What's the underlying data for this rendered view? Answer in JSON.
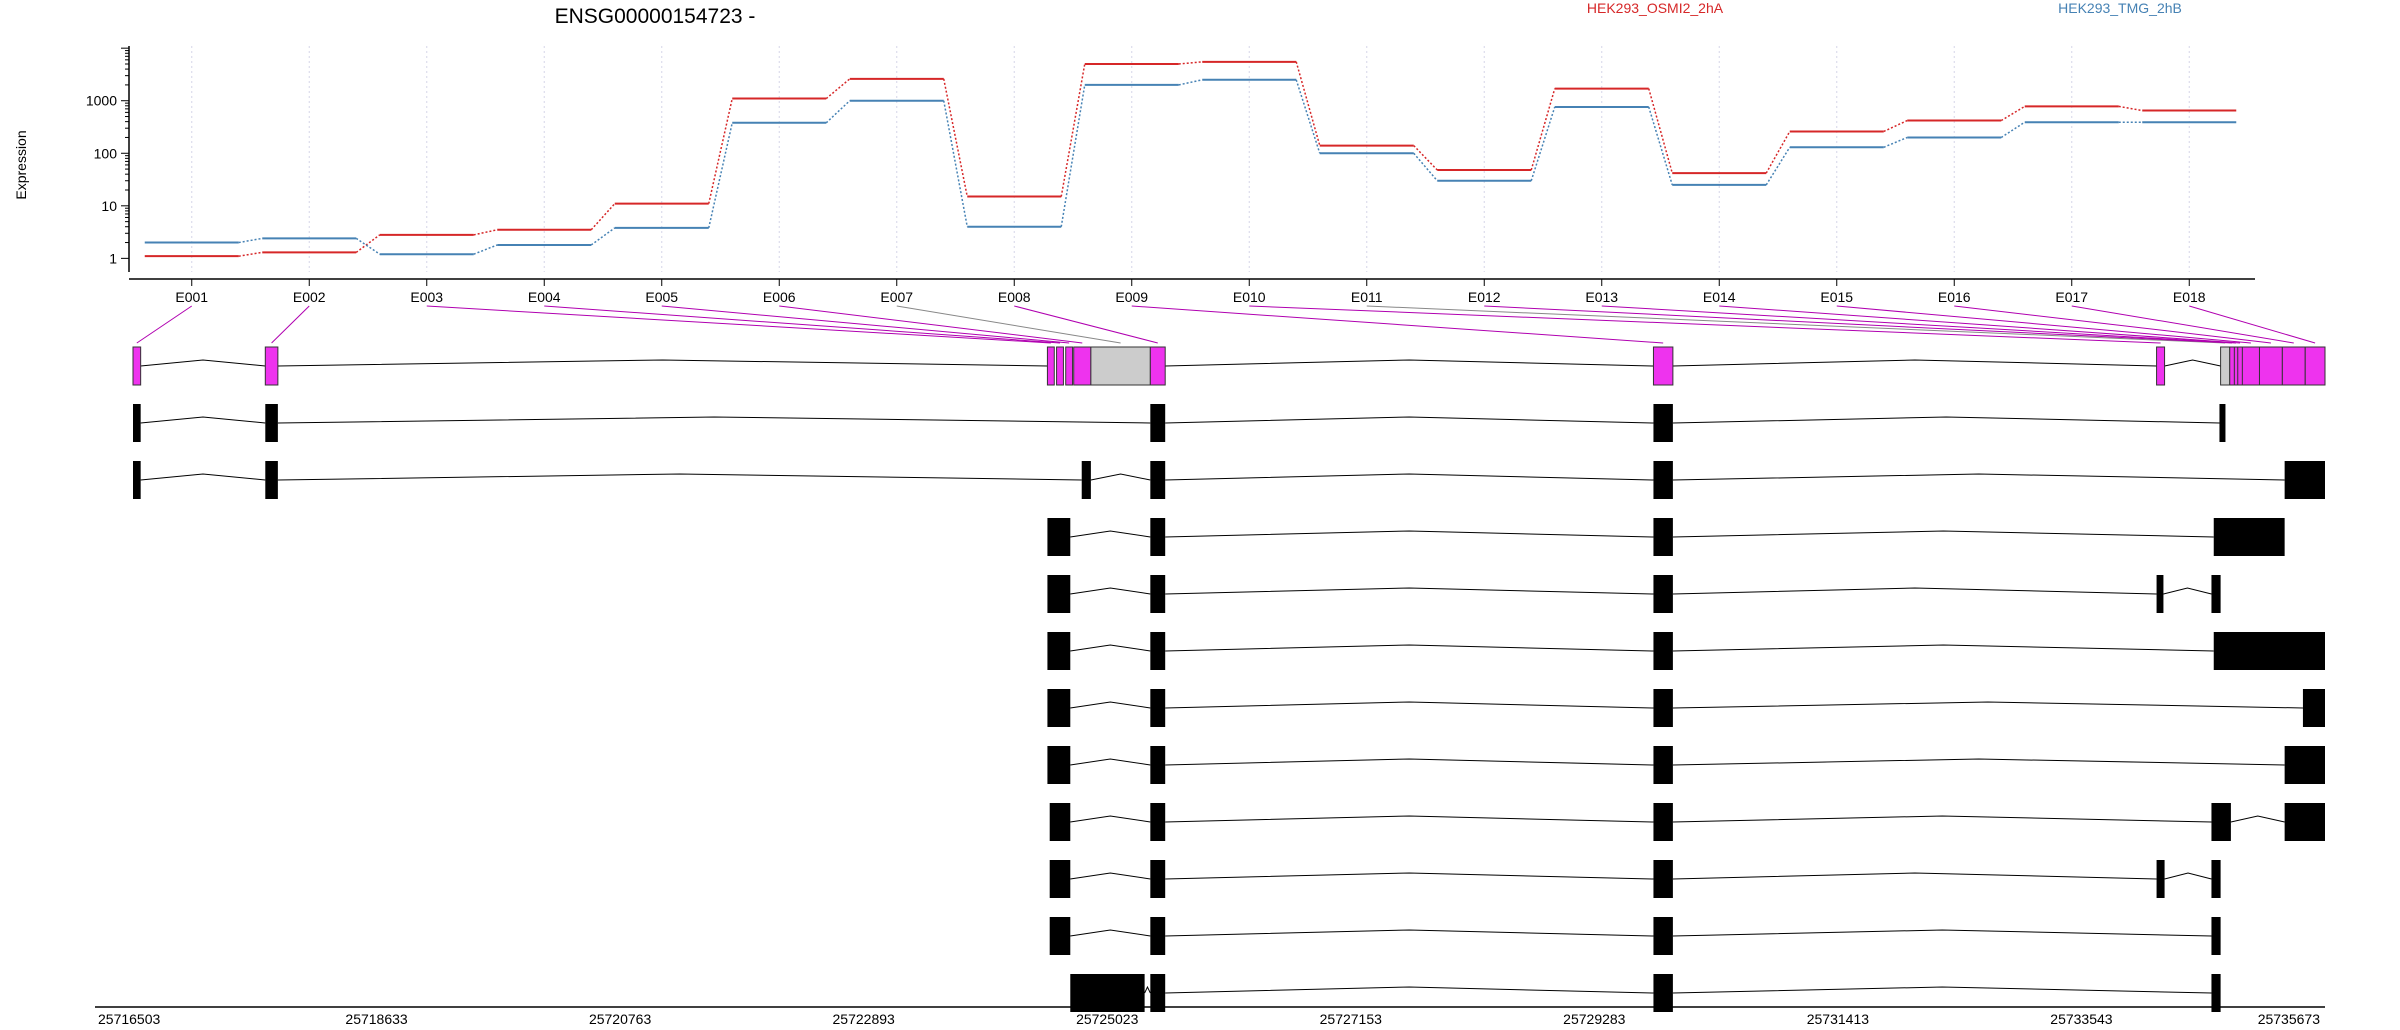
{
  "chart_data": {
    "type": "line",
    "title": "ENSG00000154723 -",
    "ylabel": "Expression",
    "y_scale": "log",
    "yticks": [
      "1",
      "10",
      "100",
      "1000"
    ],
    "ylim": [
      0.55,
      11000
    ],
    "grid": "vertical dotted lines at exon centers",
    "legend_placement": "top-right",
    "categories": [
      "E001",
      "E002",
      "E003",
      "E004",
      "E005",
      "E006",
      "E007",
      "E008",
      "E009",
      "E010",
      "E011",
      "E012",
      "E013",
      "E014",
      "E015",
      "E016",
      "E017",
      "E018"
    ],
    "series": [
      {
        "name": "HEK293_OSMI2_2hA",
        "color": "#d62728",
        "values": [
          1.1,
          1.3,
          2.8,
          3.5,
          11,
          1100,
          2600,
          15,
          5000,
          5500,
          140,
          48,
          1700,
          42,
          260,
          420,
          780,
          650
        ]
      },
      {
        "name": "HEK293_TMG_2hB",
        "color": "#4682b4",
        "values": [
          2.0,
          2.4,
          1.2,
          1.8,
          3.8,
          380,
          1000,
          4.0,
          2000,
          2500,
          100,
          30,
          760,
          25,
          130,
          200,
          390,
          390
        ]
      }
    ],
    "genomic_axis": {
      "min": 25716503,
      "max": 25735673,
      "tick_labels": [
        "25716503",
        "25718633",
        "25720763",
        "25722893",
        "25725023",
        "25727153",
        "25729283",
        "25731413",
        "25733543",
        "25735673"
      ]
    },
    "exons": [
      {
        "id": "E001",
        "start": 25716503,
        "end": 25716570,
        "tested": true
      },
      {
        "id": "E002",
        "start": 25717660,
        "end": 25717770,
        "tested": true
      },
      {
        "id": "E003",
        "start": 25724500,
        "end": 25724560,
        "tested": true
      },
      {
        "id": "E004",
        "start": 25724580,
        "end": 25724640,
        "tested": true
      },
      {
        "id": "E005",
        "start": 25724660,
        "end": 25724720,
        "tested": true
      },
      {
        "id": "E006",
        "start": 25724730,
        "end": 25724880,
        "tested": true
      },
      {
        "id": "E007",
        "start": 25724880,
        "end": 25725400,
        "tested": false
      },
      {
        "id": "E008",
        "start": 25725400,
        "end": 25725530,
        "tested": true
      },
      {
        "id": "E009",
        "start": 25729800,
        "end": 25729970,
        "tested": true
      },
      {
        "id": "E010",
        "start": 25734200,
        "end": 25734270,
        "tested": true
      },
      {
        "id": "E011",
        "start": 25734760,
        "end": 25734840,
        "tested": false
      },
      {
        "id": "E012",
        "start": 25734840,
        "end": 25734880,
        "tested": true
      },
      {
        "id": "E013",
        "start": 25734880,
        "end": 25734910,
        "tested": true
      },
      {
        "id": "E014",
        "start": 25734910,
        "end": 25734950,
        "tested": true
      },
      {
        "id": "E015",
        "start": 25734950,
        "end": 25735100,
        "tested": true
      },
      {
        "id": "E016",
        "start": 25735100,
        "end": 25735300,
        "tested": true
      },
      {
        "id": "E017",
        "start": 25735300,
        "end": 25735500,
        "tested": true
      },
      {
        "id": "E018",
        "start": 25735500,
        "end": 25735673,
        "tested": true
      }
    ],
    "transcripts": [
      [
        [
          25716503,
          25716570
        ],
        [
          25717660,
          25717770
        ],
        [
          25725400,
          25725530
        ],
        [
          25729800,
          25729970
        ],
        [
          25734750,
          25734790
        ]
      ],
      [
        [
          25716503,
          25716570
        ],
        [
          25717660,
          25717770
        ],
        [
          25724800,
          25724880
        ],
        [
          25725400,
          25725530
        ],
        [
          25729800,
          25729970
        ],
        [
          25735320,
          25735673
        ]
      ],
      [
        [
          25724500,
          25724700
        ],
        [
          25725400,
          25725530
        ],
        [
          25729800,
          25729970
        ],
        [
          25734700,
          25735320
        ]
      ],
      [
        [
          25724500,
          25724700
        ],
        [
          25725400,
          25725530
        ],
        [
          25729800,
          25729970
        ],
        [
          25734200,
          25734260
        ],
        [
          25734680,
          25734760
        ]
      ],
      [
        [
          25724500,
          25724700
        ],
        [
          25725400,
          25725530
        ],
        [
          25729800,
          25729970
        ],
        [
          25734700,
          25735673
        ]
      ],
      [
        [
          25724500,
          25724700
        ],
        [
          25725400,
          25725530
        ],
        [
          25729800,
          25729970
        ],
        [
          25735480,
          25735673
        ]
      ],
      [
        [
          25724500,
          25724700
        ],
        [
          25725400,
          25725530
        ],
        [
          25729800,
          25729970
        ],
        [
          25735320,
          25735673
        ]
      ],
      [
        [
          25724520,
          25724700
        ],
        [
          25725400,
          25725530
        ],
        [
          25729800,
          25729970
        ],
        [
          25734680,
          25734850
        ],
        [
          25735320,
          25735673
        ]
      ],
      [
        [
          25724520,
          25724700
        ],
        [
          25725400,
          25725530
        ],
        [
          25729800,
          25729970
        ],
        [
          25734200,
          25734270
        ],
        [
          25734680,
          25734760
        ]
      ],
      [
        [
          25724520,
          25724700
        ],
        [
          25725400,
          25725530
        ],
        [
          25729800,
          25729970
        ],
        [
          25734680,
          25734760
        ]
      ],
      [
        [
          25724700,
          25725350
        ],
        [
          25725400,
          25725530
        ],
        [
          25729800,
          25729970
        ],
        [
          25734680,
          25734760
        ]
      ]
    ]
  }
}
